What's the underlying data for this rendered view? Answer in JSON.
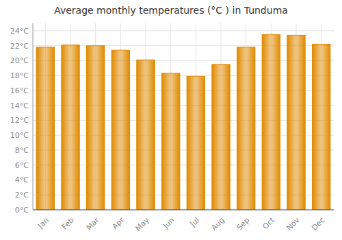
{
  "chart_data": {
    "type": "bar",
    "title": "Average monthly temperatures (°C ) in Tunduma",
    "categories": [
      "Jan",
      "Feb",
      "Mar",
      "Apr",
      "May",
      "Jun",
      "Jul",
      "Aug",
      "Sep",
      "Oct",
      "Nov",
      "Dec"
    ],
    "values": [
      21.8,
      22.1,
      22.0,
      21.4,
      20.1,
      18.3,
      17.9,
      19.5,
      21.8,
      23.5,
      23.4,
      22.2
    ],
    "color": "#E08A00",
    "ylim": [
      0,
      25
    ],
    "yticks": [
      {
        "value": 0,
        "label": "0°C"
      },
      {
        "value": 2,
        "label": "2°C"
      },
      {
        "value": 4,
        "label": "4°C"
      },
      {
        "value": 6,
        "label": "6°C"
      },
      {
        "value": 8,
        "label": "8°C"
      },
      {
        "value": 10,
        "label": "10°C"
      },
      {
        "value": 12,
        "label": "12°C"
      },
      {
        "value": 14,
        "label": "14°C"
      },
      {
        "value": 16,
        "label": "16°C"
      },
      {
        "value": 18,
        "label": "18°C"
      },
      {
        "value": 20,
        "label": "20°C"
      },
      {
        "value": 22,
        "label": "22°C"
      },
      {
        "value": 24,
        "label": "24°C"
      }
    ],
    "grid": true
  }
}
